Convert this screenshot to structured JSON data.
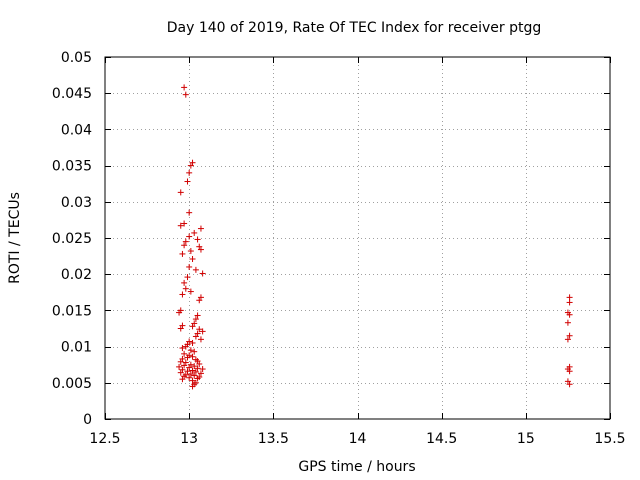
{
  "chart_data": {
    "type": "scatter",
    "title": "Day 140 of 2019, Rate Of TEC Index for receiver ptgg",
    "xlabel": "GPS time / hours",
    "ylabel": "ROTI / TECUs",
    "xlim": [
      12.5,
      15.5
    ],
    "ylim": [
      0,
      0.05
    ],
    "xticks": [
      12.5,
      13,
      13.5,
      14,
      14.5,
      15,
      15.5
    ],
    "yticks": [
      0,
      0.005,
      0.01,
      0.015,
      0.02,
      0.025,
      0.03,
      0.035,
      0.04,
      0.045,
      0.05
    ],
    "xtick_labels": [
      "12.5",
      "13",
      "13.5",
      "14",
      "14.5",
      "15",
      "15.5"
    ],
    "ytick_labels": [
      "0",
      "0.005",
      "0.01",
      "0.015",
      "0.02",
      "0.025",
      "0.03",
      "0.035",
      "0.04",
      "0.045",
      "0.05"
    ],
    "grid": true,
    "marker": "+",
    "color": "#d00000",
    "series": [
      {
        "name": "ROTI",
        "points": [
          [
            12.97,
            0.0458
          ],
          [
            12.98,
            0.0448
          ],
          [
            13.02,
            0.0354
          ],
          [
            13.01,
            0.035
          ],
          [
            13.0,
            0.034
          ],
          [
            12.99,
            0.0328
          ],
          [
            12.95,
            0.0313
          ],
          [
            13.0,
            0.0285
          ],
          [
            12.97,
            0.027
          ],
          [
            12.95,
            0.0267
          ],
          [
            13.07,
            0.0263
          ],
          [
            13.03,
            0.0257
          ],
          [
            13.0,
            0.0252
          ],
          [
            13.05,
            0.0248
          ],
          [
            12.98,
            0.0245
          ],
          [
            12.97,
            0.024
          ],
          [
            13.06,
            0.0238
          ],
          [
            13.07,
            0.0234
          ],
          [
            13.01,
            0.0232
          ],
          [
            12.96,
            0.0228
          ],
          [
            13.02,
            0.0221
          ],
          [
            13.0,
            0.021
          ],
          [
            13.04,
            0.0206
          ],
          [
            13.08,
            0.0201
          ],
          [
            12.99,
            0.0196
          ],
          [
            12.97,
            0.0188
          ],
          [
            12.98,
            0.018
          ],
          [
            13.01,
            0.0176
          ],
          [
            12.96,
            0.0172
          ],
          [
            13.07,
            0.0168
          ],
          [
            13.06,
            0.0164
          ],
          [
            12.95,
            0.015
          ],
          [
            12.94,
            0.0147
          ],
          [
            13.05,
            0.0143
          ],
          [
            13.04,
            0.0138
          ],
          [
            12.96,
            0.0129
          ],
          [
            12.95,
            0.0125
          ],
          [
            13.03,
            0.0132
          ],
          [
            13.02,
            0.0128
          ],
          [
            13.06,
            0.0124
          ],
          [
            13.08,
            0.0121
          ],
          [
            13.05,
            0.0118
          ],
          [
            13.04,
            0.0114
          ],
          [
            13.07,
            0.011
          ],
          [
            13.0,
            0.0107
          ],
          [
            13.02,
            0.0105
          ],
          [
            12.99,
            0.0103
          ],
          [
            12.98,
            0.01
          ],
          [
            12.96,
            0.0098
          ],
          [
            13.01,
            0.0095
          ],
          [
            13.03,
            0.0093
          ],
          [
            12.97,
            0.009
          ],
          [
            13.0,
            0.0088
          ],
          [
            13.02,
            0.0086
          ],
          [
            12.99,
            0.0085
          ],
          [
            12.96,
            0.0083
          ],
          [
            13.04,
            0.0082
          ],
          [
            13.05,
            0.008
          ],
          [
            12.95,
            0.0079
          ],
          [
            12.98,
            0.0078
          ],
          [
            13.06,
            0.0076
          ],
          [
            13.01,
            0.0075
          ],
          [
            12.97,
            0.0074
          ],
          [
            13.03,
            0.0073
          ],
          [
            12.94,
            0.0072
          ],
          [
            13.0,
            0.0071
          ],
          [
            13.05,
            0.007
          ],
          [
            13.08,
            0.0069
          ],
          [
            12.96,
            0.0068
          ],
          [
            13.02,
            0.0067
          ],
          [
            12.99,
            0.0066
          ],
          [
            13.04,
            0.0065
          ],
          [
            12.95,
            0.0064
          ],
          [
            13.07,
            0.0063
          ],
          [
            13.01,
            0.0062
          ],
          [
            12.98,
            0.0061
          ],
          [
            13.03,
            0.006
          ],
          [
            12.97,
            0.0059
          ],
          [
            13.06,
            0.0058
          ],
          [
            13.0,
            0.0057
          ],
          [
            13.05,
            0.0056
          ],
          [
            12.96,
            0.0055
          ],
          [
            13.02,
            0.0053
          ],
          [
            13.04,
            0.005
          ],
          [
            13.03,
            0.0048
          ],
          [
            13.02,
            0.0045
          ],
          [
            15.26,
            0.0168
          ],
          [
            15.26,
            0.0161
          ],
          [
            15.25,
            0.0147
          ],
          [
            15.26,
            0.0144
          ],
          [
            15.25,
            0.0133
          ],
          [
            15.26,
            0.0115
          ],
          [
            15.25,
            0.011
          ],
          [
            15.26,
            0.0072
          ],
          [
            15.25,
            0.0069
          ],
          [
            15.26,
            0.0066
          ],
          [
            15.25,
            0.0052
          ],
          [
            15.26,
            0.0048
          ]
        ]
      }
    ]
  }
}
